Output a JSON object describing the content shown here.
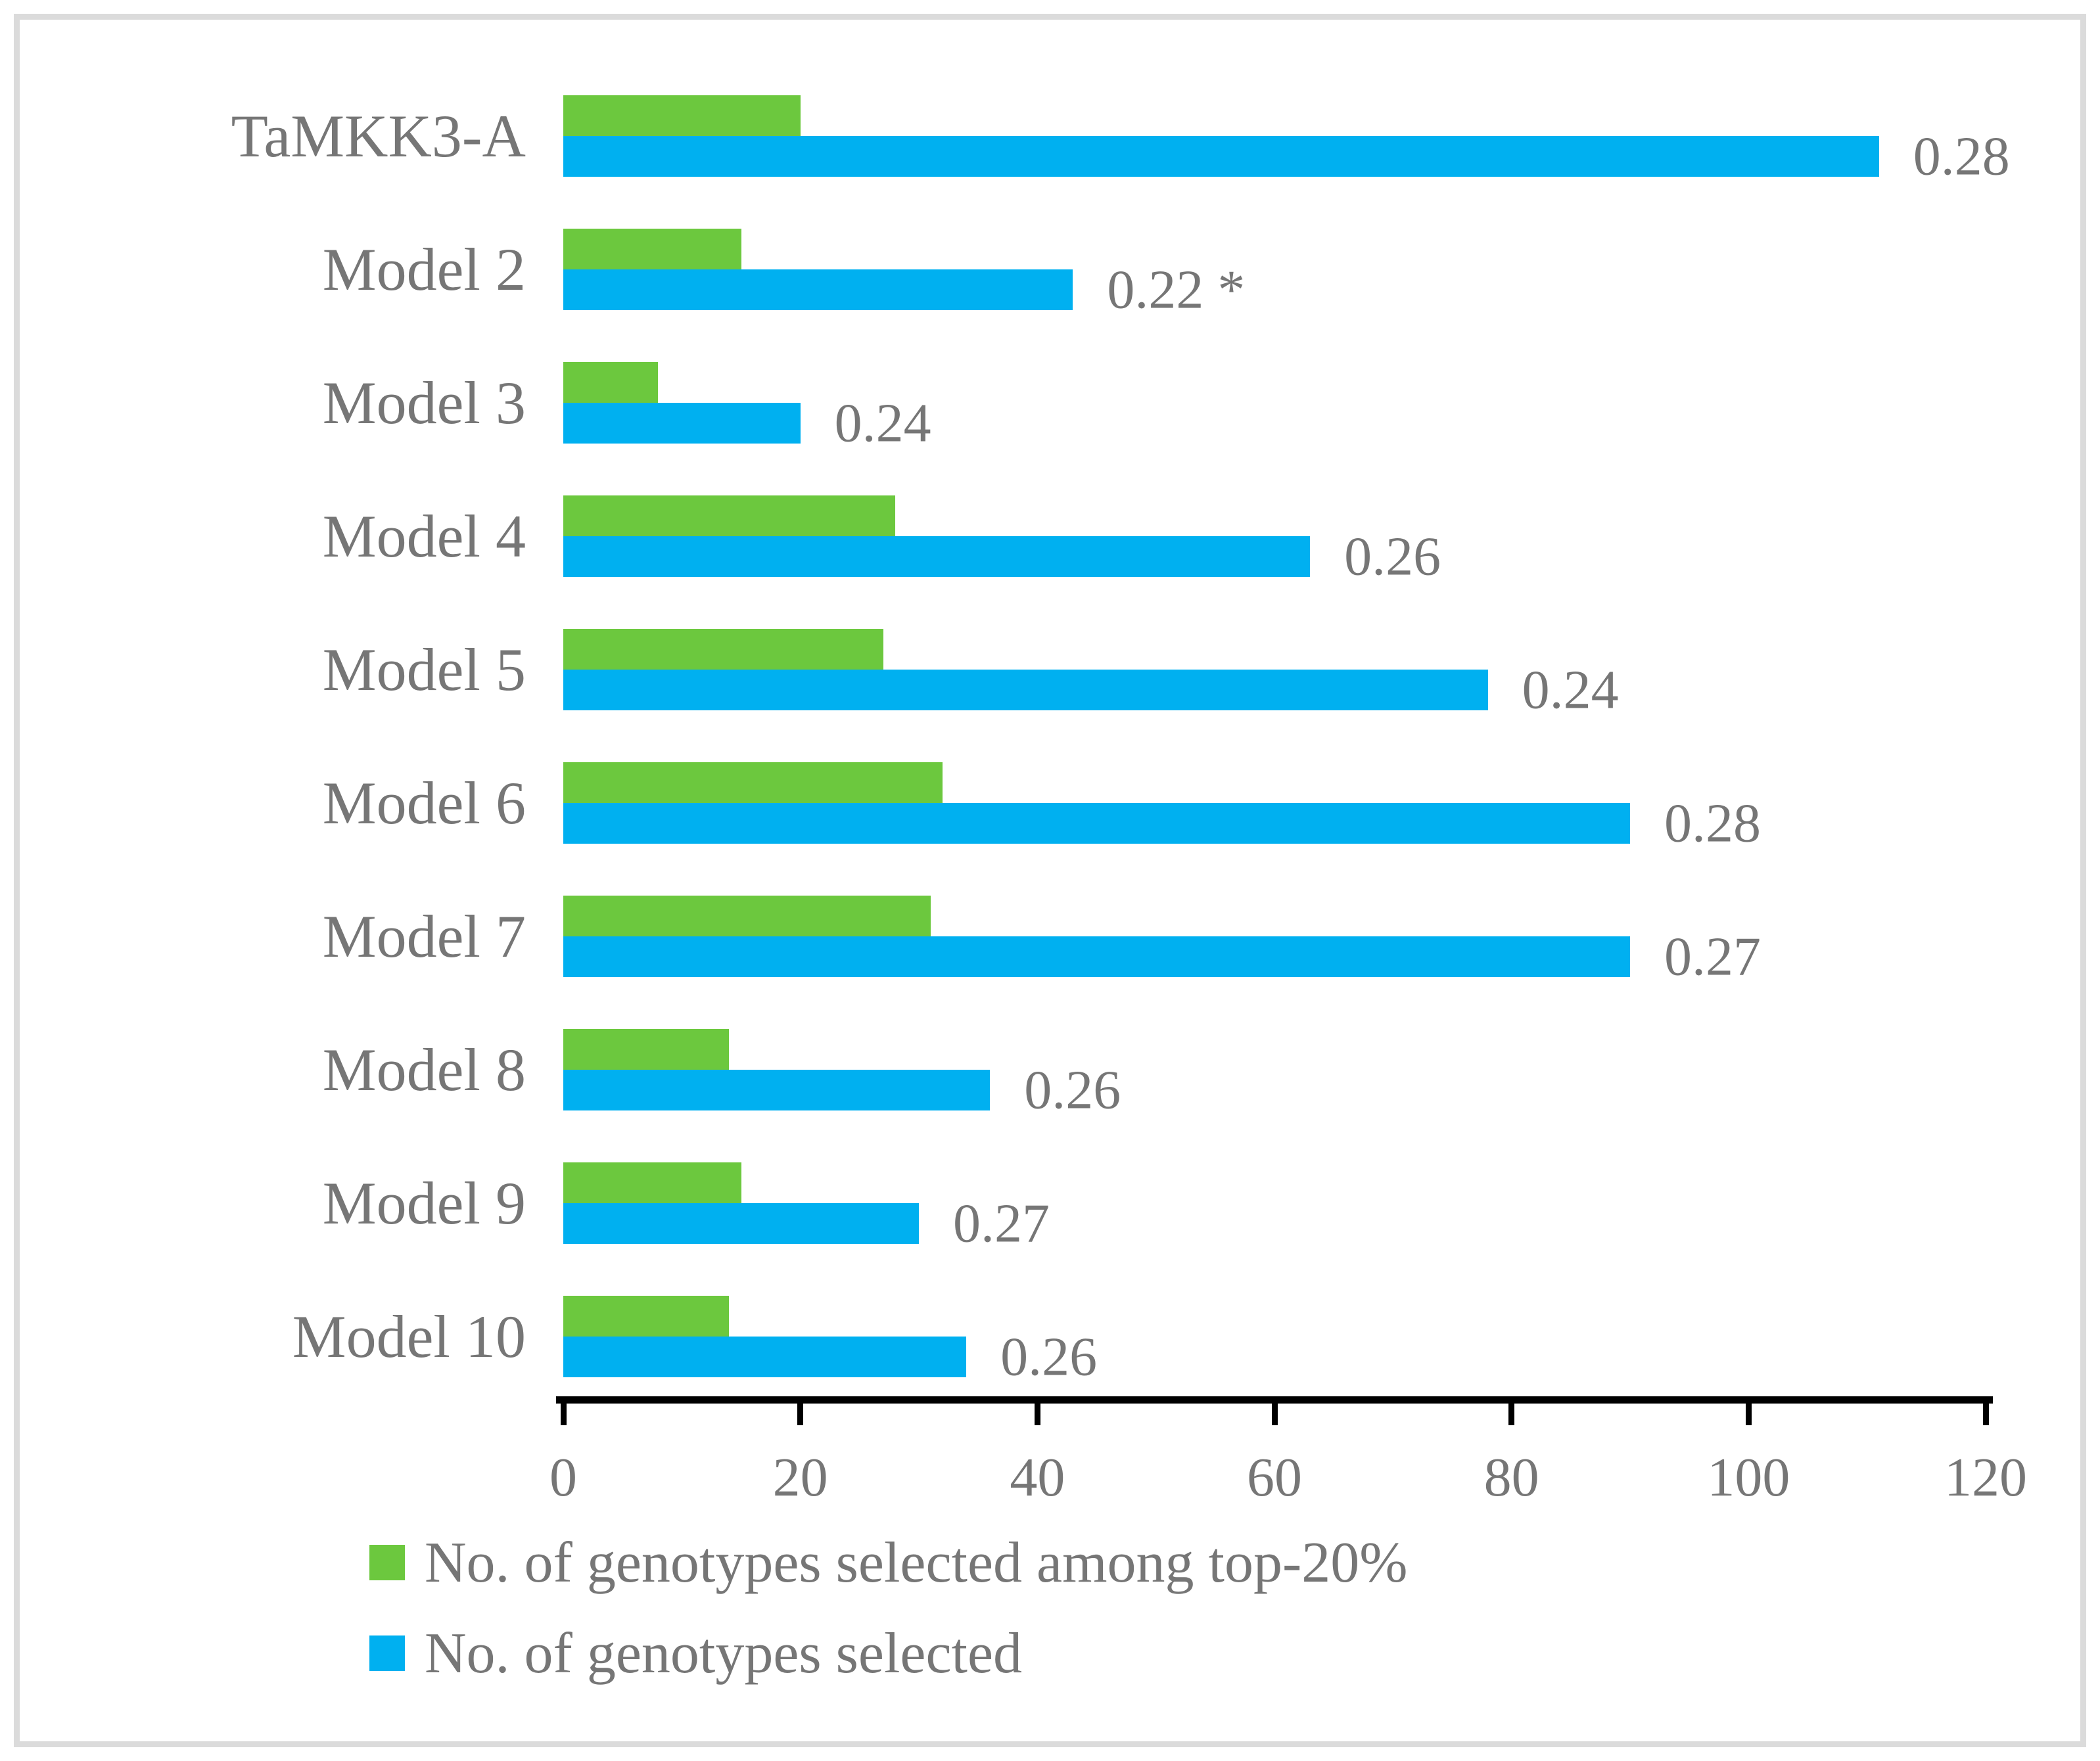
{
  "figure": {
    "background": "#ffffff",
    "frame_color": "#dbdbdb",
    "text_color": "#767676",
    "axis_color": "#000000"
  },
  "chart_data": {
    "type": "bar",
    "orientation": "horizontal",
    "title": "",
    "xlabel": "",
    "ylabel": "",
    "xlim": [
      0,
      120
    ],
    "xticks": [
      0,
      20,
      40,
      60,
      80,
      100,
      120
    ],
    "grid": false,
    "legend_position": "bottom-left",
    "categories": [
      "TaMKK3-A",
      "Model 2",
      "Model 3",
      "Model 4",
      "Model 5",
      "Model 6",
      "Model 7",
      "Model 8",
      "Model 9",
      "Model 10"
    ],
    "series": [
      {
        "name": "No. of genotypes selected among top-20%",
        "color": "#6cc83e",
        "values": [
          20,
          15,
          8,
          28,
          27,
          32,
          31,
          14,
          15,
          14
        ]
      },
      {
        "name": "No. of genotypes selected",
        "color": "#00b0f0",
        "values": [
          111,
          43,
          20,
          63,
          78,
          90,
          90,
          36,
          30,
          34
        ]
      }
    ],
    "bar_labels": [
      "0.28",
      "0.22 *",
      "0.24",
      "0.26",
      "0.24",
      "0.28",
      "0.27",
      "0.26",
      "0.27",
      "0.26"
    ]
  }
}
